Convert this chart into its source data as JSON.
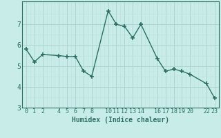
{
  "x": [
    0,
    1,
    2,
    4,
    5,
    6,
    7,
    8,
    10,
    11,
    12,
    13,
    14,
    16,
    17,
    18,
    19,
    20,
    22,
    23
  ],
  "y": [
    5.8,
    5.2,
    5.55,
    5.5,
    5.45,
    5.45,
    4.75,
    4.5,
    7.65,
    7.0,
    6.9,
    6.35,
    7.0,
    5.35,
    4.75,
    4.85,
    4.75,
    4.6,
    4.15,
    3.45
  ],
  "line_color": "#2a6e62",
  "marker": "+",
  "bg_color": "#c8ede8",
  "grid_major_color": "#b0d4cf",
  "grid_minor_color": "#c0e0db",
  "xlabel": "Humidex (Indice chaleur)",
  "xlim": [
    -0.5,
    23.5
  ],
  "ylim": [
    3.0,
    8.1
  ],
  "yticks": [
    3,
    4,
    5,
    6,
    7
  ],
  "xticks": [
    0,
    1,
    2,
    4,
    5,
    6,
    7,
    8,
    10,
    11,
    12,
    13,
    14,
    16,
    17,
    18,
    19,
    20,
    22,
    23
  ],
  "tick_color": "#2a6e62",
  "xlabel_fontsize": 7,
  "tick_fontsize": 6
}
